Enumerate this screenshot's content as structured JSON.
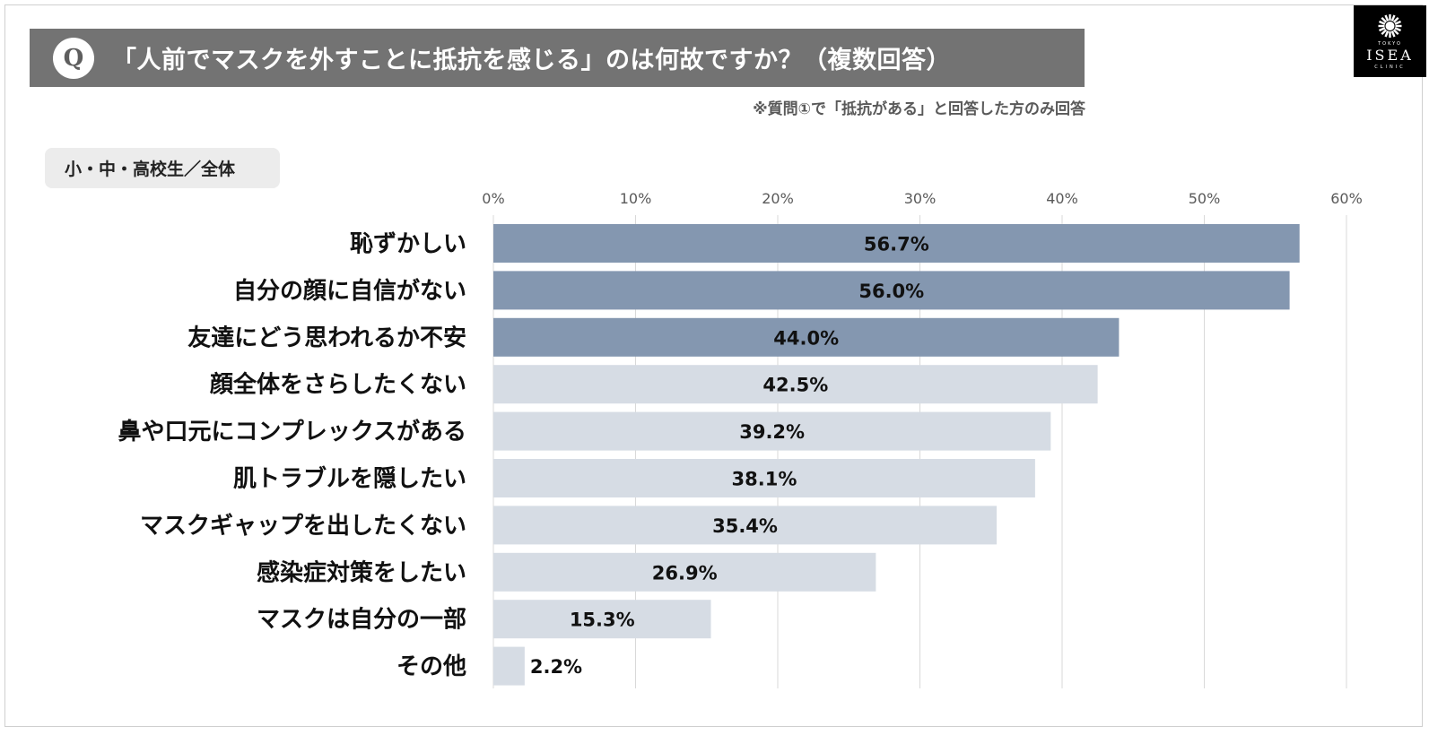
{
  "header": {
    "q_mark": "Q",
    "title": "「人前でマスクを外すことに抵抗を感じる」のは何故ですか？（複数回答）",
    "note": "※質問①で「抵抗がある」と回答した方のみ回答"
  },
  "logo": {
    "top": "TOKYO",
    "name": "ISEA",
    "bottom": "CLINIC"
  },
  "segment_tag": "小・中・高校生／全体",
  "colors": {
    "title_bar": "#737373",
    "highlight": "#8497b0",
    "normal": "#d6dce4",
    "grid": "#d9d9d9"
  },
  "chart_data": {
    "type": "bar",
    "orientation": "horizontal",
    "categories": [
      "恥ずかしい",
      "自分の顔に自信がない",
      "友達にどう思われるか不安",
      "顔全体をさらしたくない",
      "鼻や口元にコンプレックスがある",
      "肌トラブルを隠したい",
      "マスクギャップを出したくない",
      "感染症対策をしたい",
      "マスクは自分の一部",
      "その他"
    ],
    "values": [
      56.7,
      56.0,
      44.0,
      42.5,
      39.2,
      38.1,
      35.4,
      26.9,
      15.3,
      2.2
    ],
    "value_labels": [
      "56.7%",
      "56.0%",
      "44.0%",
      "42.5%",
      "39.2%",
      "38.1%",
      "35.4%",
      "26.9%",
      "15.3%",
      "2.2%"
    ],
    "highlighted": [
      true,
      true,
      true,
      false,
      false,
      false,
      false,
      false,
      false,
      false
    ],
    "xlim": [
      0,
      60
    ],
    "xticks": [
      0,
      10,
      20,
      30,
      40,
      50,
      60
    ],
    "xtick_labels": [
      "0%",
      "10%",
      "20%",
      "30%",
      "40%",
      "50%",
      "60%"
    ],
    "grid": true,
    "xaxis_position": "top"
  }
}
